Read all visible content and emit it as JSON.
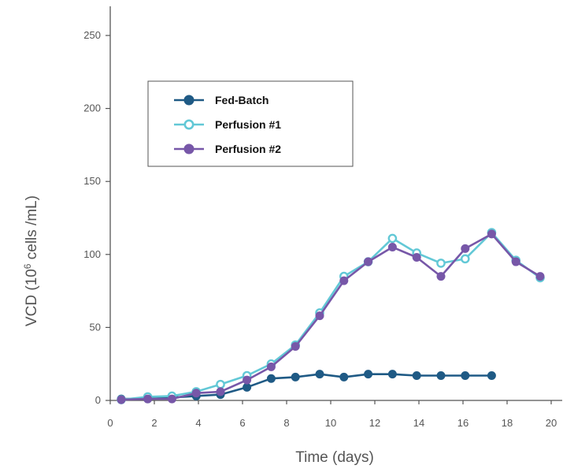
{
  "chart_data": {
    "type": "line",
    "xlabel": "Time (days)",
    "ylabel": {
      "prefix": "VCD (10",
      "exponent": "6",
      "suffix": " cells /mL)"
    },
    "xlim": [
      0,
      20
    ],
    "ylim": [
      0,
      250
    ],
    "x_ticks": [
      "0",
      "2",
      "4",
      "6",
      "8",
      "10",
      "12",
      "14",
      "16",
      "18",
      "20"
    ],
    "y_ticks": [
      "0",
      "50",
      "100",
      "150",
      "200",
      "250"
    ],
    "grid": false,
    "legend_position": "upper-left-center",
    "series": [
      {
        "name": "Fed-Batch",
        "color": "#1f5a85",
        "marker": "filled-circle",
        "x": [
          0.5,
          1.7,
          2.8,
          3.9,
          5.0,
          6.2,
          7.3,
          8.4,
          9.5,
          10.6,
          11.7,
          12.8,
          13.9,
          15.0,
          16.1,
          17.3
        ],
        "y": [
          1,
          1,
          2,
          3,
          4,
          9,
          15,
          16,
          18,
          16,
          18,
          18,
          17,
          17,
          17,
          17
        ]
      },
      {
        "name": "Perfusion  #1",
        "color": "#62c8d6",
        "marker": "open-circle",
        "x": [
          0.5,
          1.7,
          2.8,
          3.9,
          5.0,
          6.2,
          7.3,
          8.4,
          9.5,
          10.6,
          11.7,
          12.8,
          13.9,
          15.0,
          16.1,
          17.3,
          18.4,
          19.5
        ],
        "y": [
          0.5,
          2.5,
          3,
          6,
          11,
          17,
          25,
          38,
          60,
          85,
          95,
          111,
          101,
          94,
          97,
          115,
          96,
          84
        ]
      },
      {
        "name": "Perfusion  #2",
        "color": "#7757a8",
        "marker": "filled-circle",
        "x": [
          0.5,
          1.7,
          2.8,
          3.9,
          5.0,
          6.2,
          7.3,
          8.4,
          9.5,
          10.6,
          11.7,
          12.8,
          13.9,
          15.0,
          16.1,
          17.3,
          18.4,
          19.5
        ],
        "y": [
          0.5,
          1,
          1,
          5,
          6,
          14,
          23,
          37,
          58,
          82,
          95,
          105,
          98,
          85,
          104,
          114,
          95,
          85
        ]
      }
    ]
  }
}
